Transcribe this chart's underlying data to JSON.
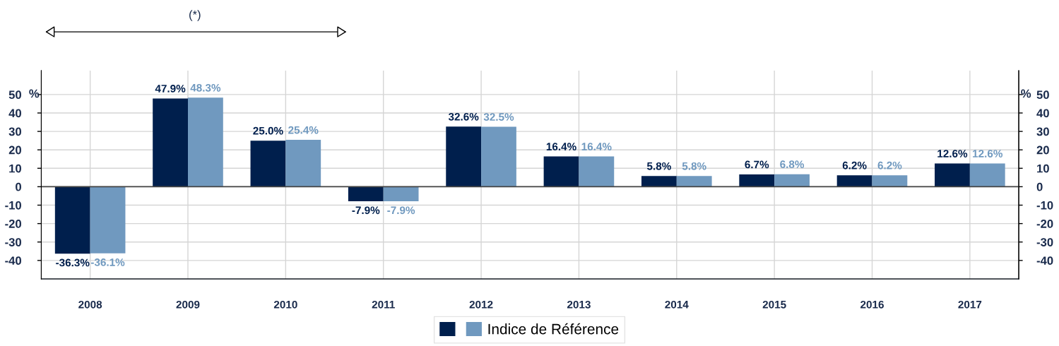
{
  "chart_data": {
    "type": "bar",
    "categories": [
      "2008",
      "2009",
      "2010",
      "2011",
      "2012",
      "2013",
      "2014",
      "2015",
      "2016",
      "2017"
    ],
    "series": [
      {
        "color": "#001f4d",
        "values": [
          -36.3,
          47.9,
          25.0,
          -7.9,
          32.6,
          16.4,
          5.8,
          6.7,
          6.2,
          12.6
        ],
        "value_labels": [
          "-36.3%",
          "47.9%",
          "25.0%",
          "-7.9%",
          "32.6%",
          "16.4%",
          "5.8%",
          "6.7%",
          "6.2%",
          "12.6%"
        ]
      },
      {
        "name": "Indice de Référence",
        "color": "#7099bf",
        "values": [
          -36.1,
          48.3,
          25.4,
          -7.9,
          32.5,
          16.4,
          5.8,
          6.8,
          6.2,
          12.6
        ],
        "value_labels": [
          "-36.1%",
          "48.3%",
          "25.4%",
          "-7.9%",
          "32.5%",
          "16.4%",
          "5.8%",
          "6.8%",
          "6.2%",
          "12.6%"
        ]
      }
    ],
    "ylabel": "%",
    "y2label": "%",
    "ylim": [
      -50,
      63
    ],
    "yticks": [
      -40,
      -30,
      -20,
      -10,
      0,
      10,
      20,
      30,
      40,
      50
    ],
    "y2lim": [
      -50,
      63
    ],
    "y2ticks": [
      -40,
      -30,
      -20,
      -10,
      0,
      10,
      20,
      30,
      40,
      50
    ],
    "annotations": [
      "(*)"
    ],
    "grid": true,
    "legend": "bottom"
  }
}
